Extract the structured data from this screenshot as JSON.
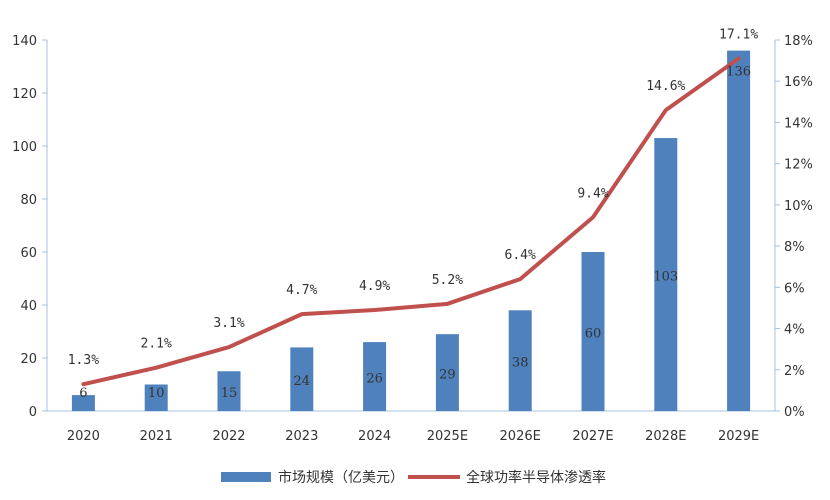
{
  "chart_data": {
    "type": "bar",
    "categories": [
      "2020",
      "2021",
      "2022",
      "2023",
      "2024",
      "2025E",
      "2026E",
      "2027E",
      "2028E",
      "2029E"
    ],
    "series": [
      {
        "name": "市场规模（亿美元）",
        "type": "bar",
        "axis": "left",
        "color": "#4f81bd",
        "values": [
          6,
          10,
          15,
          24,
          26,
          29,
          38,
          60,
          103,
          136
        ],
        "labels": [
          "6",
          "10",
          "15",
          "24",
          "26",
          "29",
          "38",
          "60",
          "103",
          "136"
        ]
      },
      {
        "name": "全球功率半导体渗透率",
        "type": "line",
        "axis": "right",
        "color": "#c0504d",
        "values": [
          1.3,
          2.1,
          3.1,
          4.7,
          4.9,
          5.2,
          6.4,
          9.4,
          14.6,
          17.1
        ],
        "labels": [
          "1.3%",
          "2.1%",
          "3.1%",
          "4.7%",
          "4.9%",
          "5.2%",
          "6.4%",
          "9.4%",
          "14.6%",
          "17.1%"
        ]
      }
    ],
    "y_left": {
      "range": [
        0,
        140
      ],
      "ticks": [
        "0",
        "20",
        "40",
        "60",
        "80",
        "100",
        "120",
        "140"
      ]
    },
    "y_right": {
      "range": [
        0,
        18
      ],
      "ticks": [
        "0%",
        "2%",
        "4%",
        "6%",
        "8%",
        "10%",
        "12%",
        "14%",
        "16%",
        "18%"
      ]
    },
    "title": "",
    "xlabel": "",
    "ylabel": "",
    "grid": false,
    "legend_position": "bottom-center"
  }
}
